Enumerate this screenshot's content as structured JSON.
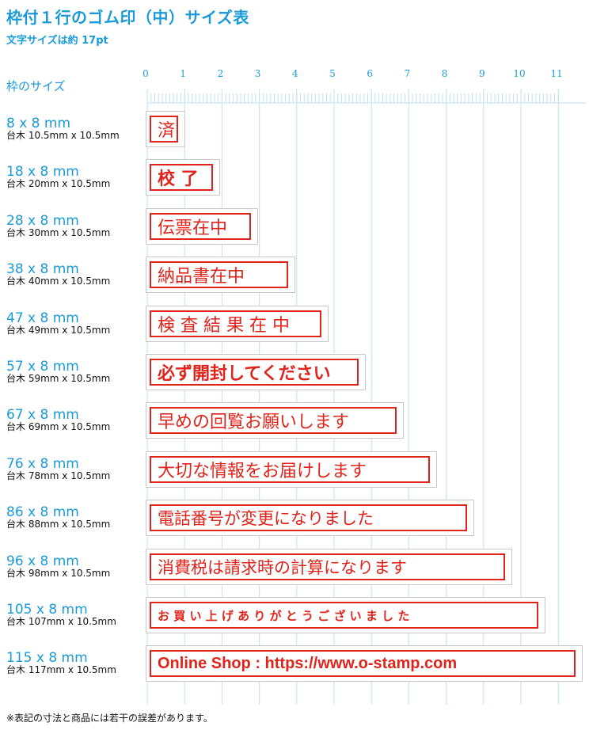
{
  "title": "枠付１行のゴム印（中）サイズ表",
  "subtitle": "文字サイズは約 17pt",
  "frame_header": "枠のサイズ",
  "ruler": [
    "0",
    "1",
    "2",
    "3",
    "4",
    "5",
    "6",
    "7",
    "8",
    "9",
    "10",
    "11"
  ],
  "rows": [
    {
      "size": "8 x 8 mm",
      "base": "台木 10.5mm x 10.5mm",
      "stamp_text": "済",
      "width_cm": 1.05
    },
    {
      "size": "18 x 8 mm",
      "base": "台木 20mm x 10.5mm",
      "stamp_text": "校 了",
      "width_cm": 2.0
    },
    {
      "size": "28 x 8 mm",
      "base": "台木 30mm x 10.5mm",
      "stamp_text": "伝票在中",
      "width_cm": 3.0
    },
    {
      "size": "38 x 8 mm",
      "base": "台木 40mm x 10.5mm",
      "stamp_text": "納品書在中",
      "width_cm": 4.0
    },
    {
      "size": "47 x 8 mm",
      "base": "台木 49mm x 10.5mm",
      "stamp_text": "検 査 結 果 在 中",
      "width_cm": 4.9
    },
    {
      "size": "57 x 8 mm",
      "base": "台木 59mm x 10.5mm",
      "stamp_text": "必ず開封してください",
      "width_cm": 5.9
    },
    {
      "size": "67 x 8 mm",
      "base": "台木 69mm x 10.5mm",
      "stamp_text": "早めの回覧お願いします",
      "width_cm": 6.9
    },
    {
      "size": "76 x 8 mm",
      "base": "台木 78mm x 10.5mm",
      "stamp_text": "大切な情報をお届けします",
      "width_cm": 7.8
    },
    {
      "size": "86 x 8 mm",
      "base": "台木 88mm x 10.5mm",
      "stamp_text": "電話番号が変更になりました",
      "width_cm": 8.8
    },
    {
      "size": "96 x 8 mm",
      "base": "台木 98mm x 10.5mm",
      "stamp_text": "消費税は請求時の計算になります",
      "width_cm": 9.8
    },
    {
      "size": "105 x 8 mm",
      "base": "台木 107mm x 10.5mm",
      "stamp_text": "お 買 い 上 げ あ り が と う ご ざ い ま し た",
      "width_cm": 10.7
    },
    {
      "size": "115 x 8 mm",
      "base": "台木 117mm x 10.5mm",
      "stamp_text": "Online Shop : https://www.o-stamp.com",
      "width_cm": 11.7
    }
  ],
  "note": "※表記の寸法と商品には若干の誤差があります。",
  "colors": {
    "accent": "#1a9bd7",
    "stamp": "#e0241b",
    "grid": "#bfe2f4"
  }
}
